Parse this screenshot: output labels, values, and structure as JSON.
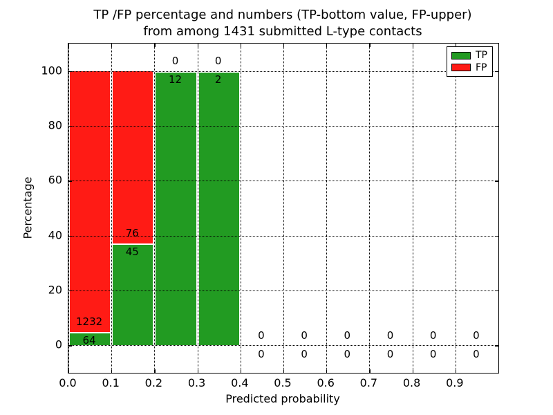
{
  "figure": {
    "title_line1": "TP /FP percentage and numbers (TP-bottom value, FP-upper)",
    "title_line2": "from among 1431 submitted L-type contacts",
    "xlabel": "Predicted probability",
    "ylabel": "Percentage"
  },
  "legend": {
    "position": "upper right",
    "items": [
      {
        "label": "TP",
        "color": "#229b22"
      },
      {
        "label": "FP",
        "color": "#ff1b15"
      }
    ]
  },
  "chart_data": {
    "type": "bar",
    "stacked": true,
    "normalized_to_percent": true,
    "title": "TP /FP percentage and numbers (TP-bottom value, FP-upper) from among 1431 submitted L-type contacts",
    "xlabel": "Predicted probability",
    "ylabel": "Percentage",
    "total_contacts": 1431,
    "xlim": [
      0.0,
      1.0
    ],
    "ylim": [
      -10,
      110
    ],
    "xtick_labels": [
      "0.0",
      "0.1",
      "0.2",
      "0.3",
      "0.4",
      "0.5",
      "0.6",
      "0.7",
      "0.8",
      "0.9"
    ],
    "xtick_values": [
      0.0,
      0.1,
      0.2,
      0.3,
      0.4,
      0.5,
      0.6,
      0.7,
      0.8,
      0.9
    ],
    "ytick_values": [
      0,
      20,
      40,
      60,
      80,
      100
    ],
    "grid": "dotted black, both axes",
    "bar_width": 0.1,
    "colors": {
      "TP": "#229b22",
      "FP": "#ff1b15",
      "bar_edge": "#ffffff"
    },
    "bins": [
      {
        "x0": 0.0,
        "x1": 0.1,
        "tp": 64,
        "fp": 1232
      },
      {
        "x0": 0.1,
        "x1": 0.2,
        "tp": 45,
        "fp": 76
      },
      {
        "x0": 0.2,
        "x1": 0.3,
        "tp": 12,
        "fp": 0
      },
      {
        "x0": 0.3,
        "x1": 0.4,
        "tp": 2,
        "fp": 0
      },
      {
        "x0": 0.4,
        "x1": 0.5,
        "tp": 0,
        "fp": 0
      },
      {
        "x0": 0.5,
        "x1": 0.6,
        "tp": 0,
        "fp": 0
      },
      {
        "x0": 0.6,
        "x1": 0.7,
        "tp": 0,
        "fp": 0
      },
      {
        "x0": 0.7,
        "x1": 0.8,
        "tp": 0,
        "fp": 0
      },
      {
        "x0": 0.8,
        "x1": 0.9,
        "tp": 0,
        "fp": 0
      },
      {
        "x0": 0.9,
        "x1": 1.0,
        "tp": 0,
        "fp": 0
      }
    ],
    "series": [
      {
        "name": "TP",
        "color": "#229b22",
        "counts": [
          64,
          45,
          12,
          2,
          0,
          0,
          0,
          0,
          0,
          0
        ]
      },
      {
        "name": "FP",
        "color": "#ff1b15",
        "counts": [
          1232,
          76,
          0,
          0,
          0,
          0,
          0,
          0,
          0,
          0
        ]
      }
    ],
    "tp_percent_by_bin": [
      4.94,
      37.19,
      100,
      100,
      0,
      0,
      0,
      0,
      0,
      0
    ],
    "fp_percent_by_bin": [
      95.06,
      62.81,
      0,
      0,
      0,
      0,
      0,
      0,
      0,
      0
    ],
    "label_offset_pct": 3.4,
    "legend_position": "upper right"
  }
}
